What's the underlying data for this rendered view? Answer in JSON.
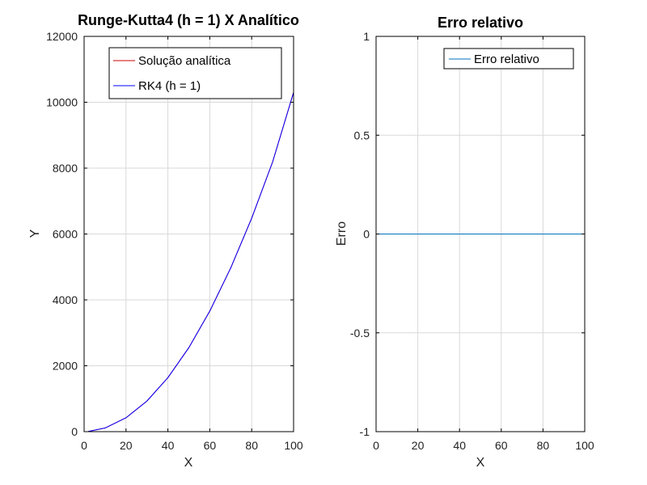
{
  "chart_data": [
    {
      "type": "line",
      "title": "Runge-Kutta4 (h = 1) X Analítico",
      "xlabel": "X",
      "ylabel": "Y",
      "xlim": [
        0,
        100
      ],
      "ylim": [
        0,
        12000
      ],
      "xticks": [
        "0",
        "20",
        "40",
        "60",
        "80",
        "100"
      ],
      "yticks": [
        "0",
        "2000",
        "4000",
        "6000",
        "8000",
        "10000",
        "12000"
      ],
      "grid": true,
      "legend_position": "top",
      "x": [
        2,
        10,
        20,
        30,
        40,
        50,
        60,
        70,
        80,
        90,
        100
      ],
      "series": [
        {
          "name": "Solução analítica",
          "color": "#cc0000",
          "y": [
            5,
            110,
            420,
            930,
            1640,
            2550,
            3660,
            4970,
            6480,
            8190,
            10300
          ]
        },
        {
          "name": "RK4 (h = 1)",
          "color": "#0000ff",
          "y": [
            5,
            110,
            420,
            930,
            1640,
            2550,
            3660,
            4970,
            6480,
            8190,
            10300
          ]
        }
      ]
    },
    {
      "type": "line",
      "title": "Erro relativo",
      "xlabel": "X",
      "ylabel": "Erro",
      "xlim": [
        0,
        100
      ],
      "ylim": [
        -1,
        1
      ],
      "xticks": [
        "0",
        "20",
        "40",
        "60",
        "80",
        "100"
      ],
      "yticks": [
        "-1",
        "-0.5",
        "0",
        "0.5",
        "1"
      ],
      "grid": true,
      "legend_position": "top-right",
      "x": [
        0,
        100
      ],
      "series": [
        {
          "name": "Erro relativo",
          "color": "#0072bd",
          "y": [
            0,
            0
          ]
        }
      ]
    }
  ]
}
